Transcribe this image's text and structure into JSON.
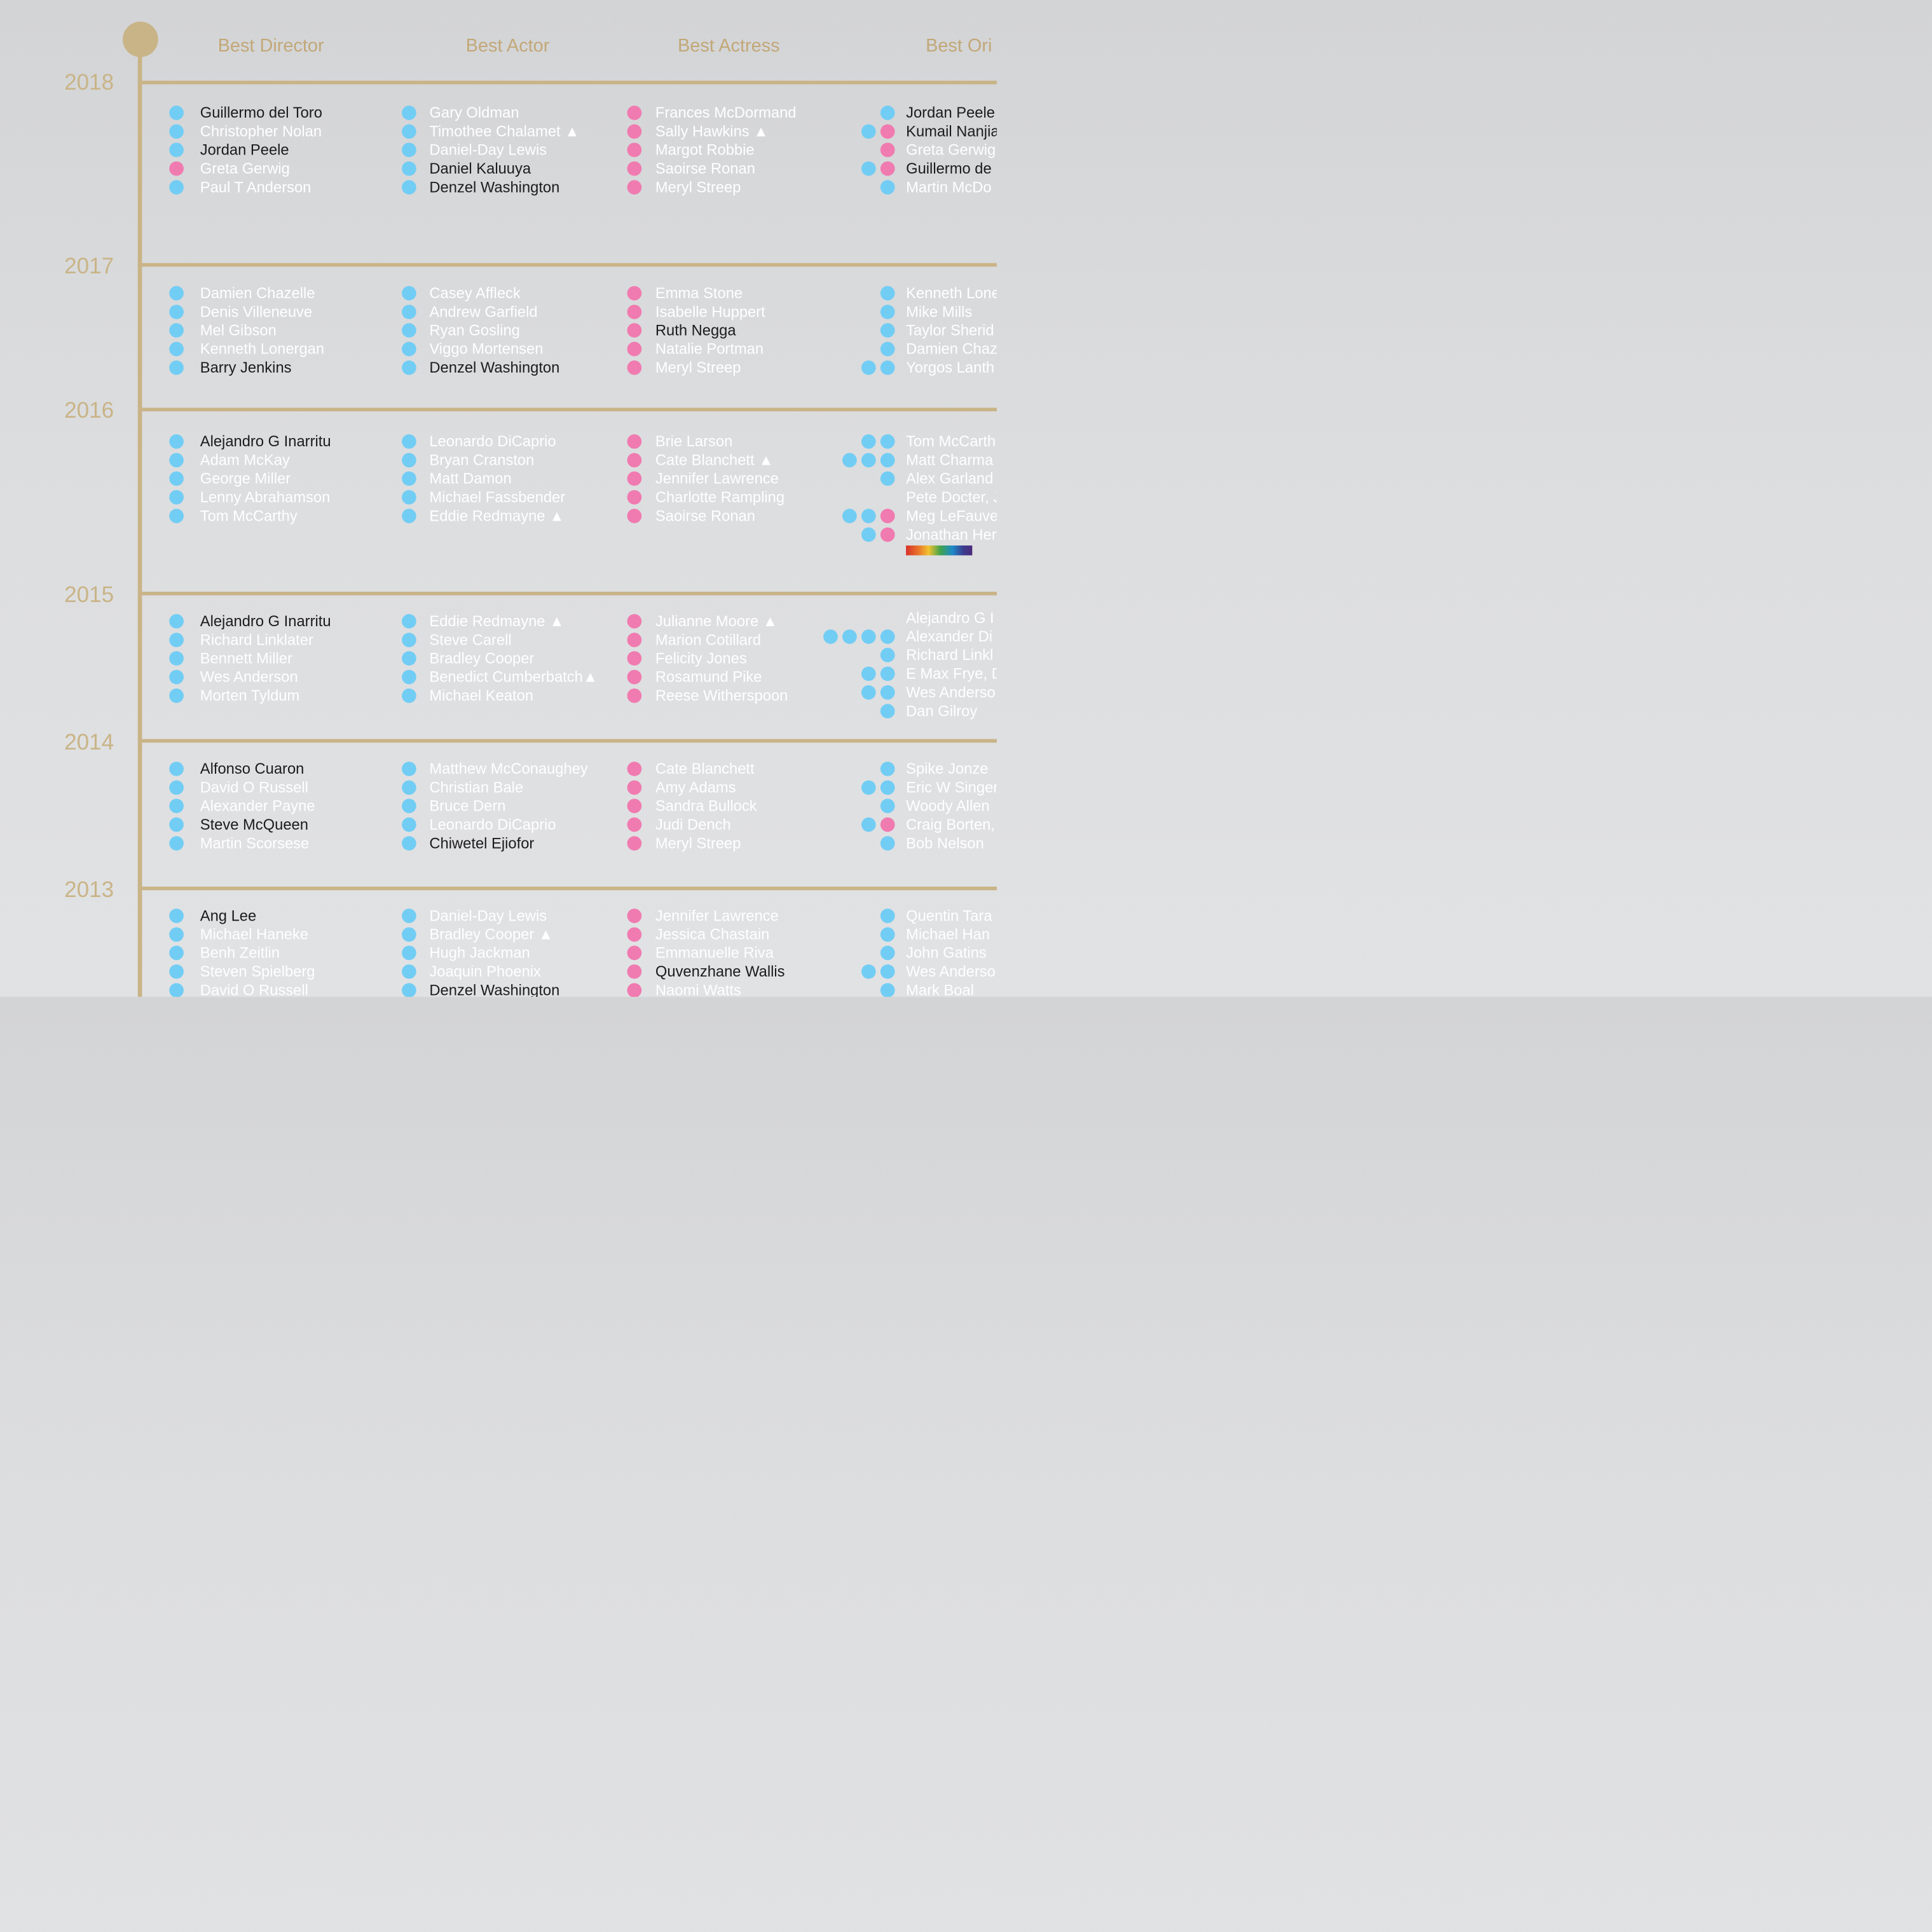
{
  "timeline": {
    "accent_color": "#c9b487"
  },
  "colors": {
    "male": "#72cdf4",
    "female": "#f07bb0",
    "winner_text": "#1c1c1c",
    "nominee_text": "#ffffff"
  },
  "categories": [
    "Best Director",
    "Best Actor",
    "Best Actress",
    "Best Ori"
  ],
  "years": [
    "2018",
    "2017",
    "2016",
    "2015",
    "2014",
    "2013"
  ],
  "rows": [
    {
      "year": "2018",
      "director": [
        {
          "name": "Guillermo del Toro",
          "won": true,
          "dots": [
            "m"
          ]
        },
        {
          "name": "Christopher Nolan",
          "won": false,
          "dots": [
            "m"
          ]
        },
        {
          "name": "Jordan Peele",
          "won": true,
          "dots": [
            "m"
          ]
        },
        {
          "name": "Greta Gerwig",
          "won": false,
          "dots": [
            "f"
          ]
        },
        {
          "name": "Paul T Anderson",
          "won": false,
          "dots": [
            "m"
          ]
        }
      ],
      "actor": [
        {
          "name": "Gary Oldman",
          "won": false,
          "dots": [
            "m"
          ]
        },
        {
          "name": "Timothee Chalamet ▲",
          "won": false,
          "dots": [
            "m"
          ]
        },
        {
          "name": "Daniel-Day Lewis",
          "won": false,
          "dots": [
            "m"
          ]
        },
        {
          "name": "Daniel Kaluuya",
          "won": true,
          "dots": [
            "m"
          ]
        },
        {
          "name": "Denzel Washington",
          "won": true,
          "dots": [
            "m"
          ]
        }
      ],
      "actress": [
        {
          "name": "Frances McDormand",
          "won": false,
          "dots": [
            "f"
          ]
        },
        {
          "name": "Sally Hawkins ▲",
          "won": false,
          "dots": [
            "f"
          ]
        },
        {
          "name": "Margot Robbie",
          "won": false,
          "dots": [
            "f"
          ]
        },
        {
          "name": "Saoirse Ronan",
          "won": false,
          "dots": [
            "f"
          ]
        },
        {
          "name": "Meryl Streep",
          "won": false,
          "dots": [
            "f"
          ]
        }
      ],
      "original": [
        {
          "name": "Jordan Peele",
          "won": true,
          "dots": [
            "m"
          ]
        },
        {
          "name": "Kumail Nanjia",
          "won": true,
          "dots": [
            "m",
            "f"
          ]
        },
        {
          "name": "Greta Gerwig",
          "won": false,
          "dots": [
            "f"
          ]
        },
        {
          "name": "Guillermo de",
          "won": true,
          "dots": [
            "m",
            "f"
          ]
        },
        {
          "name": "Martin McDo",
          "won": false,
          "dots": [
            "m"
          ]
        }
      ]
    },
    {
      "year": "2017",
      "director": [
        {
          "name": "Damien Chazelle",
          "won": false,
          "dots": [
            "m"
          ]
        },
        {
          "name": "Denis Villeneuve",
          "won": false,
          "dots": [
            "m"
          ]
        },
        {
          "name": "Mel Gibson",
          "won": false,
          "dots": [
            "m"
          ]
        },
        {
          "name": "Kenneth Lonergan",
          "won": false,
          "dots": [
            "m"
          ]
        },
        {
          "name": "Barry Jenkins",
          "won": true,
          "dots": [
            "m"
          ]
        }
      ],
      "actor": [
        {
          "name": "Casey Affleck",
          "won": false,
          "dots": [
            "m"
          ]
        },
        {
          "name": "Andrew Garfield",
          "won": false,
          "dots": [
            "m"
          ]
        },
        {
          "name": "Ryan Gosling",
          "won": false,
          "dots": [
            "m"
          ]
        },
        {
          "name": "Viggo Mortensen",
          "won": false,
          "dots": [
            "m"
          ]
        },
        {
          "name": "Denzel Washington",
          "won": true,
          "dots": [
            "m"
          ]
        }
      ],
      "actress": [
        {
          "name": "Emma Stone",
          "won": false,
          "dots": [
            "f"
          ]
        },
        {
          "name": "Isabelle Huppert",
          "won": false,
          "dots": [
            "f"
          ]
        },
        {
          "name": "Ruth Negga",
          "won": true,
          "dots": [
            "f"
          ]
        },
        {
          "name": "Natalie Portman",
          "won": false,
          "dots": [
            "f"
          ]
        },
        {
          "name": "Meryl Streep",
          "won": false,
          "dots": [
            "f"
          ]
        }
      ],
      "original": [
        {
          "name": "Kenneth Lone",
          "won": false,
          "dots": [
            "m"
          ]
        },
        {
          "name": "Mike Mills",
          "won": false,
          "dots": [
            "m"
          ]
        },
        {
          "name": "Taylor Sherid",
          "won": false,
          "dots": [
            "m"
          ]
        },
        {
          "name": "Damien Chaz",
          "won": false,
          "dots": [
            "m"
          ]
        },
        {
          "name": "Yorgos Lanth",
          "won": false,
          "dots": [
            "m",
            "m"
          ]
        }
      ]
    },
    {
      "year": "2016",
      "director": [
        {
          "name": "Alejandro G Inarritu",
          "won": true,
          "dots": [
            "m"
          ]
        },
        {
          "name": "Adam McKay",
          "won": false,
          "dots": [
            "m"
          ]
        },
        {
          "name": "George Miller",
          "won": false,
          "dots": [
            "m"
          ]
        },
        {
          "name": "Lenny Abrahamson",
          "won": false,
          "dots": [
            "m"
          ]
        },
        {
          "name": "Tom McCarthy",
          "won": false,
          "dots": [
            "m"
          ]
        }
      ],
      "actor": [
        {
          "name": "Leonardo DiCaprio",
          "won": false,
          "dots": [
            "m"
          ]
        },
        {
          "name": "Bryan Cranston",
          "won": false,
          "dots": [
            "m"
          ]
        },
        {
          "name": "Matt Damon",
          "won": false,
          "dots": [
            "m"
          ]
        },
        {
          "name": "Michael Fassbender",
          "won": false,
          "dots": [
            "m"
          ]
        },
        {
          "name": "Eddie Redmayne ▲",
          "won": false,
          "dots": [
            "m"
          ]
        }
      ],
      "actress": [
        {
          "name": "Brie Larson",
          "won": false,
          "dots": [
            "f"
          ]
        },
        {
          "name": "Cate Blanchett ▲",
          "won": false,
          "dots": [
            "f"
          ]
        },
        {
          "name": "Jennifer Lawrence",
          "won": false,
          "dots": [
            "f"
          ]
        },
        {
          "name": "Charlotte Rampling",
          "won": false,
          "dots": [
            "f"
          ]
        },
        {
          "name": "Saoirse Ronan",
          "won": false,
          "dots": [
            "f"
          ]
        }
      ],
      "original": [
        {
          "name": "Tom McCarth",
          "won": false,
          "dots": [
            "m",
            "m"
          ]
        },
        {
          "name": "Matt Charma",
          "won": false,
          "dots": [
            "m",
            "m",
            "m"
          ]
        },
        {
          "name": "Alex Garland",
          "won": false,
          "dots": [
            "m"
          ]
        },
        {
          "name": "Pete Docter, J",
          "won": false,
          "dots": []
        },
        {
          "name": "Meg LeFauve",
          "won": false,
          "dots": [
            "m",
            "m",
            "f"
          ]
        },
        {
          "name": "Jonathan Her",
          "won": false,
          "dots": [
            "m",
            "f"
          ]
        }
      ]
    },
    {
      "year": "2015",
      "director": [
        {
          "name": "Alejandro G Inarritu",
          "won": true,
          "dots": [
            "m"
          ]
        },
        {
          "name": "Richard Linklater",
          "won": false,
          "dots": [
            "m"
          ]
        },
        {
          "name": "Bennett Miller",
          "won": false,
          "dots": [
            "m"
          ]
        },
        {
          "name": "Wes Anderson",
          "won": false,
          "dots": [
            "m"
          ]
        },
        {
          "name": "Morten Tyldum",
          "won": false,
          "dots": [
            "m"
          ]
        }
      ],
      "actor": [
        {
          "name": "Eddie Redmayne ▲",
          "won": false,
          "dots": [
            "m"
          ]
        },
        {
          "name": "Steve Carell",
          "won": false,
          "dots": [
            "m"
          ]
        },
        {
          "name": "Bradley Cooper",
          "won": false,
          "dots": [
            "m"
          ]
        },
        {
          "name": "Benedict Cumberbatch▲",
          "won": false,
          "dots": [
            "m"
          ]
        },
        {
          "name": "Michael Keaton",
          "won": false,
          "dots": [
            "m"
          ]
        }
      ],
      "actress": [
        {
          "name": "Julianne Moore ▲",
          "won": false,
          "dots": [
            "f"
          ]
        },
        {
          "name": "Marion Cotillard",
          "won": false,
          "dots": [
            "f"
          ]
        },
        {
          "name": "Felicity Jones",
          "won": false,
          "dots": [
            "f"
          ]
        },
        {
          "name": "Rosamund Pike",
          "won": false,
          "dots": [
            "f"
          ]
        },
        {
          "name": "Reese Witherspoon",
          "won": false,
          "dots": [
            "f"
          ]
        }
      ],
      "original": [
        {
          "name": "Alejandro G I",
          "won": false,
          "dots": []
        },
        {
          "name": "Alexander Di",
          "won": false,
          "dots": [
            "m",
            "m",
            "m",
            "m"
          ]
        },
        {
          "name": "Richard Linkl",
          "won": false,
          "dots": [
            "m"
          ]
        },
        {
          "name": "E Max Frye, D",
          "won": false,
          "dots": [
            "m",
            "m"
          ]
        },
        {
          "name": "Wes Anderso",
          "won": false,
          "dots": [
            "m",
            "m"
          ]
        },
        {
          "name": "Dan Gilroy",
          "won": false,
          "dots": [
            "m"
          ]
        }
      ]
    },
    {
      "year": "2014",
      "director": [
        {
          "name": "Alfonso Cuaron",
          "won": true,
          "dots": [
            "m"
          ]
        },
        {
          "name": "David O Russell",
          "won": false,
          "dots": [
            "m"
          ]
        },
        {
          "name": "Alexander Payne",
          "won": false,
          "dots": [
            "m"
          ]
        },
        {
          "name": "Steve McQueen",
          "won": true,
          "dots": [
            "m"
          ]
        },
        {
          "name": "Martin Scorsese",
          "won": false,
          "dots": [
            "m"
          ]
        }
      ],
      "actor": [
        {
          "name": "Matthew McConaughey",
          "won": false,
          "dots": [
            "m"
          ]
        },
        {
          "name": "Christian Bale",
          "won": false,
          "dots": [
            "m"
          ]
        },
        {
          "name": "Bruce Dern",
          "won": false,
          "dots": [
            "m"
          ]
        },
        {
          "name": "Leonardo DiCaprio",
          "won": false,
          "dots": [
            "m"
          ]
        },
        {
          "name": "Chiwetel Ejiofor",
          "won": true,
          "dots": [
            "m"
          ]
        }
      ],
      "actress": [
        {
          "name": "Cate Blanchett",
          "won": false,
          "dots": [
            "f"
          ]
        },
        {
          "name": "Amy Adams",
          "won": false,
          "dots": [
            "f"
          ]
        },
        {
          "name": "Sandra Bullock",
          "won": false,
          "dots": [
            "f"
          ]
        },
        {
          "name": "Judi Dench",
          "won": false,
          "dots": [
            "f"
          ]
        },
        {
          "name": "Meryl Streep",
          "won": false,
          "dots": [
            "f"
          ]
        }
      ],
      "original": [
        {
          "name": "Spike Jonze",
          "won": false,
          "dots": [
            "m"
          ]
        },
        {
          "name": "Eric W Singer",
          "won": false,
          "dots": [
            "m",
            "m"
          ]
        },
        {
          "name": "Woody Allen",
          "won": false,
          "dots": [
            "m"
          ]
        },
        {
          "name": "Craig Borten,",
          "won": false,
          "dots": [
            "m",
            "f"
          ]
        },
        {
          "name": "Bob Nelson",
          "won": false,
          "dots": [
            "m"
          ]
        }
      ]
    },
    {
      "year": "2013",
      "director": [
        {
          "name": "Ang Lee",
          "won": true,
          "dots": [
            "m"
          ]
        },
        {
          "name": "Michael Haneke",
          "won": false,
          "dots": [
            "m"
          ]
        },
        {
          "name": "Benh Zeitlin",
          "won": false,
          "dots": [
            "m"
          ]
        },
        {
          "name": "Steven Spielberg",
          "won": false,
          "dots": [
            "m"
          ]
        },
        {
          "name": "David O Russell",
          "won": false,
          "dots": [
            "m"
          ]
        }
      ],
      "actor": [
        {
          "name": "Daniel-Day Lewis",
          "won": false,
          "dots": [
            "m"
          ]
        },
        {
          "name": "Bradley Cooper ▲",
          "won": false,
          "dots": [
            "m"
          ]
        },
        {
          "name": "Hugh Jackman",
          "won": false,
          "dots": [
            "m"
          ]
        },
        {
          "name": "Joaquin Phoenix",
          "won": false,
          "dots": [
            "m"
          ]
        },
        {
          "name": "Denzel Washington",
          "won": true,
          "dots": [
            "m"
          ]
        }
      ],
      "actress": [
        {
          "name": "Jennifer Lawrence",
          "won": false,
          "dots": [
            "f"
          ]
        },
        {
          "name": "Jessica Chastain",
          "won": false,
          "dots": [
            "f"
          ]
        },
        {
          "name": "Emmanuelle Riva",
          "won": false,
          "dots": [
            "f"
          ]
        },
        {
          "name": "Quvenzhane Wallis",
          "won": true,
          "dots": [
            "f"
          ]
        },
        {
          "name": "Naomi Watts",
          "won": false,
          "dots": [
            "f"
          ]
        }
      ],
      "original": [
        {
          "name": "Quentin Tara",
          "won": false,
          "dots": [
            "m"
          ]
        },
        {
          "name": "Michael Han",
          "won": false,
          "dots": [
            "m"
          ]
        },
        {
          "name": "John Gatins",
          "won": false,
          "dots": [
            "m"
          ]
        },
        {
          "name": "Wes Anderso",
          "won": false,
          "dots": [
            "m",
            "m"
          ]
        },
        {
          "name": "Mark Boal",
          "won": false,
          "dots": [
            "m"
          ]
        }
      ]
    }
  ]
}
